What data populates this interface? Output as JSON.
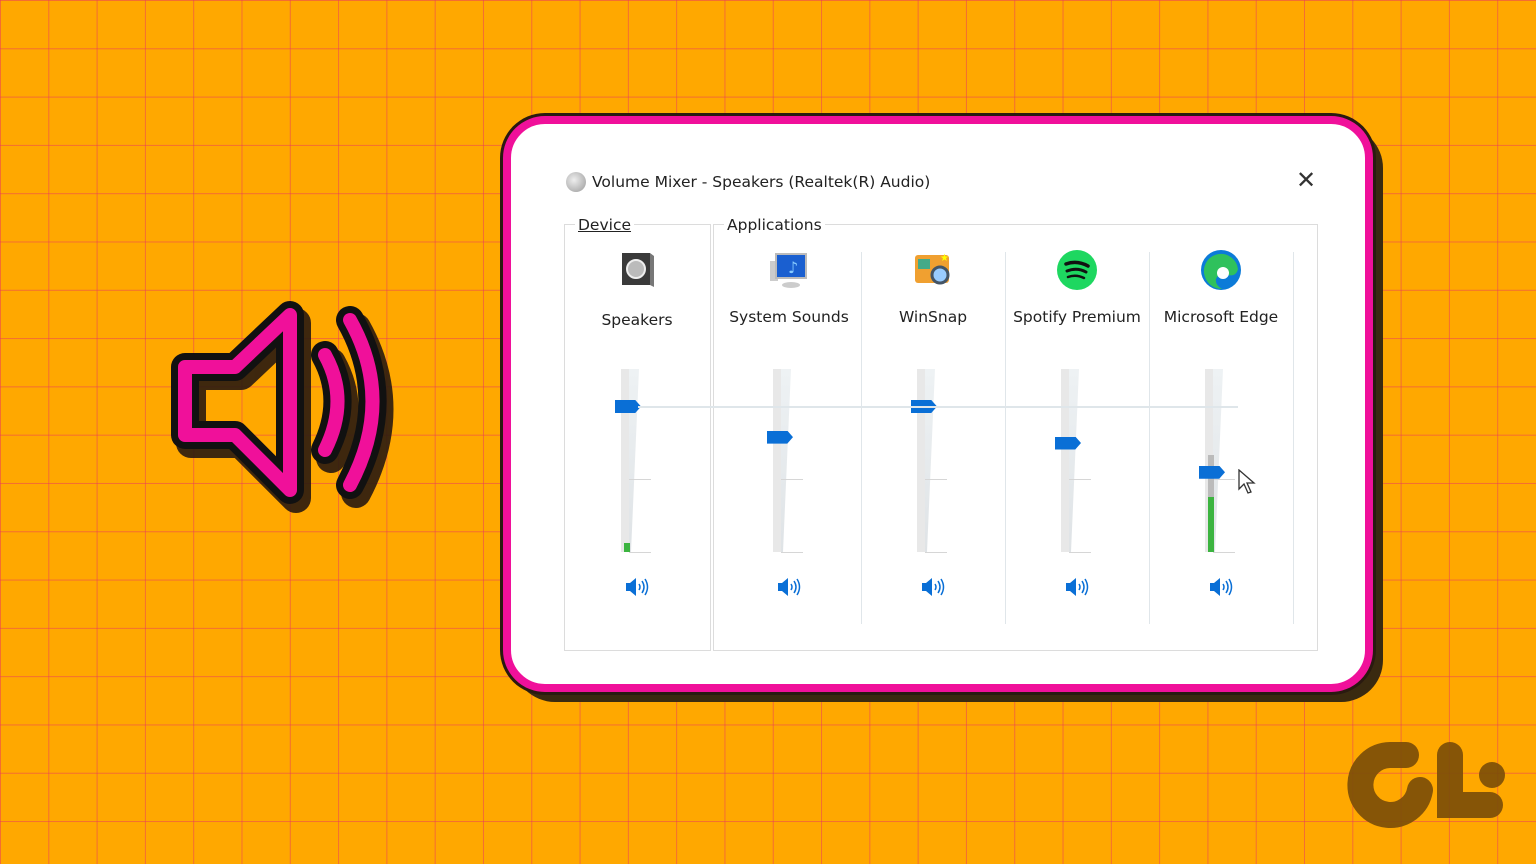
{
  "window": {
    "title": "Volume Mixer - Speakers (Realtek(R) Audio)",
    "close_label": "✕"
  },
  "device": {
    "group_label": "Device",
    "name": "Speakers",
    "volume_percent": 100,
    "meter_percent": 5
  },
  "applications": {
    "group_label": "Applications",
    "items": [
      {
        "name": "System Sounds",
        "icon": "system-sounds-icon",
        "volume_percent": 79,
        "meter_percent": 0
      },
      {
        "name": "WinSnap",
        "icon": "winsnap-icon",
        "volume_percent": 100,
        "meter_percent": 0
      },
      {
        "name": "Spotify Premium",
        "icon": "spotify-icon",
        "volume_percent": 75,
        "meter_percent": 0
      },
      {
        "name": "Microsoft Edge",
        "icon": "edge-icon",
        "volume_percent": 55,
        "meter_percent": 30,
        "peak_percent": 53
      }
    ]
  },
  "colors": {
    "background": "#FFA800",
    "card_border": "#f0109a",
    "slider_thumb": "#0a6fd6",
    "meter": "#3cb440"
  },
  "logo": {
    "text": "GT"
  }
}
